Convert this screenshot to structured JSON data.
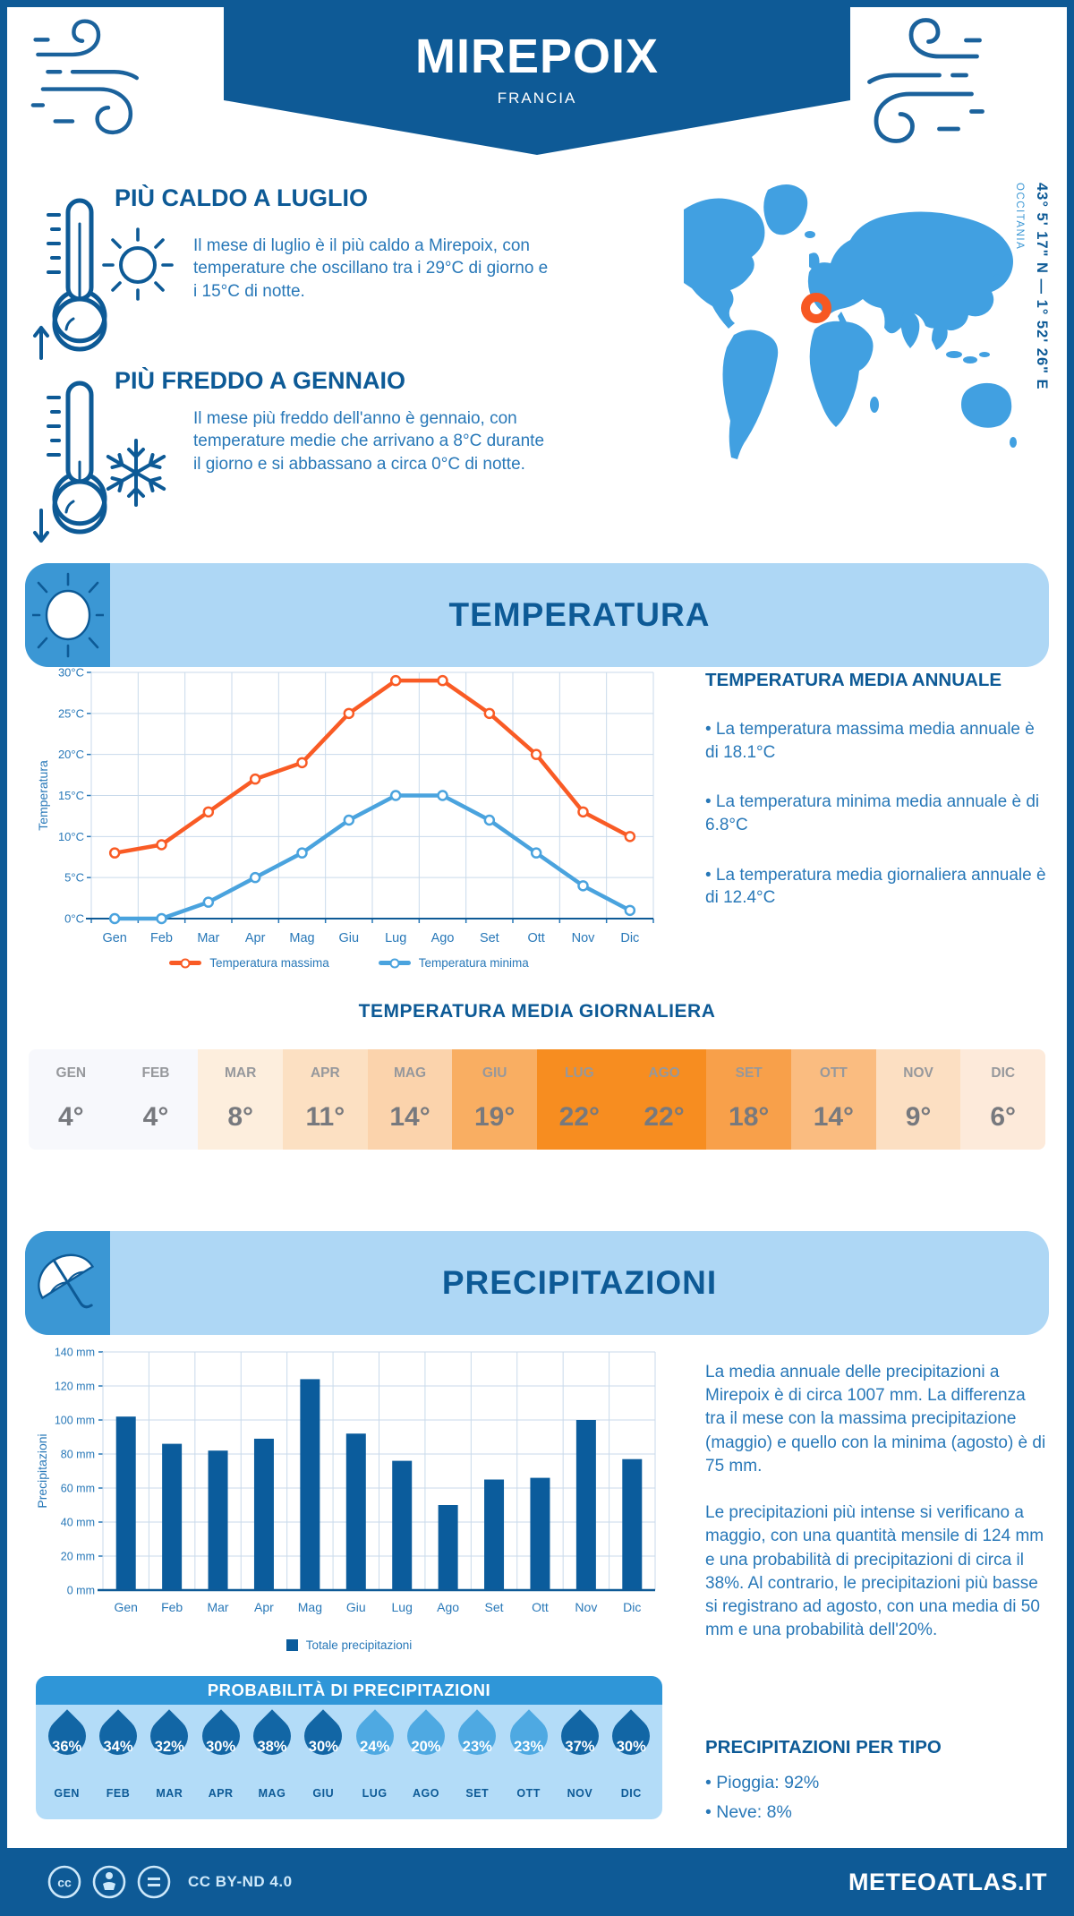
{
  "colors": {
    "dark": "#0e5a96",
    "heading": "#0d5a96",
    "text": "#2878b8",
    "band": "#aed7f5",
    "accent": "#3b97d4",
    "land": "#41a0e1",
    "marker": "#f75822",
    "grid": "#c9daeb",
    "orange": "#f95b25",
    "lineblue": "#4aa3de",
    "bar": "#0b5c9c",
    "probheader": "#2f96d8",
    "probbg": "#b3dcf8",
    "dropdark": "#1266a5",
    "droplight": "#4ea9e2",
    "tablemonth": "#96989c",
    "tablevalue": "#77797e",
    "footertext": "#cde8fa"
  },
  "header": {
    "title": "MIREPOIX",
    "subtitle": "FRANCIA"
  },
  "highlights": {
    "hot": {
      "title": "PIÙ CALDO A LUGLIO",
      "text": "Il mese di luglio è il più caldo a Mirepoix, con temperature che oscillano tra i 29°C di giorno e i 15°C di notte."
    },
    "cold": {
      "title": "PIÙ FREDDO A GENNAIO",
      "text": "Il mese più freddo dell'anno è gennaio, con temperature medie che arrivano a 8°C durante il giorno e si abbassano a circa 0°C di notte."
    }
  },
  "map": {
    "coordinates": "43° 5' 17\" N — 1° 52' 26\" E",
    "region": "OCCITANIA"
  },
  "sections": {
    "temperature": "TEMPERATURA",
    "precipitation": "PRECIPITAZIONI"
  },
  "chart_data": [
    {
      "type": "line",
      "title": "Temperatura",
      "categories": [
        "Gen",
        "Feb",
        "Mar",
        "Apr",
        "Mag",
        "Giu",
        "Lug",
        "Ago",
        "Set",
        "Ott",
        "Nov",
        "Dic"
      ],
      "series": [
        {
          "name": "Temperatura massima",
          "color": "#f95b25",
          "values": [
            8,
            9,
            13,
            17,
            19,
            25,
            29,
            29,
            25,
            20,
            13,
            10
          ]
        },
        {
          "name": "Temperatura minima",
          "color": "#4aa3de",
          "values": [
            0,
            0,
            2,
            5,
            8,
            12,
            15,
            15,
            12,
            8,
            4,
            1
          ]
        }
      ],
      "xlabel": "",
      "ylabel": "Temperatura",
      "ytick_suffix": "°C",
      "ylim": [
        0,
        30
      ],
      "ytick_step": 5,
      "grid": true,
      "legend_position": "bottom"
    },
    {
      "type": "bar",
      "title": "Precipitazioni",
      "categories": [
        "Gen",
        "Feb",
        "Mar",
        "Apr",
        "Mag",
        "Giu",
        "Lug",
        "Ago",
        "Set",
        "Ott",
        "Nov",
        "Dic"
      ],
      "series": [
        {
          "name": "Totale precipitazioni",
          "color": "#0b5c9c",
          "values": [
            102,
            86,
            82,
            89,
            124,
            92,
            76,
            50,
            65,
            66,
            100,
            77
          ]
        }
      ],
      "xlabel": "",
      "ylabel": "Precipitazioni",
      "ytick_suffix": " mm",
      "ylim": [
        0,
        140
      ],
      "ytick_step": 20,
      "grid": true,
      "legend_position": "bottom"
    }
  ],
  "annual": {
    "title": "TEMPERATURA MEDIA ANNUALE",
    "bullets": [
      "• La temperatura massima media annuale è di 18.1°C",
      "• La temperatura minima media annuale è di 6.8°C",
      "• La temperatura media giornaliera annuale è di 12.4°C"
    ]
  },
  "daily_table": {
    "title": "TEMPERATURA MEDIA GIORNALIERA",
    "months": [
      "GEN",
      "FEB",
      "MAR",
      "APR",
      "MAG",
      "GIU",
      "LUG",
      "AGO",
      "SET",
      "OTT",
      "NOV",
      "DIC"
    ],
    "values": [
      "4°",
      "4°",
      "8°",
      "11°",
      "14°",
      "19°",
      "22°",
      "22°",
      "18°",
      "14°",
      "9°",
      "6°"
    ],
    "cell_colors": [
      "#f7f8fc",
      "#f7f8fc",
      "#fdeedd",
      "#fce0c2",
      "#fbd3ac",
      "#f9ae62",
      "#f78d20",
      "#f78d20",
      "#f8a04a",
      "#fabc80",
      "#fcdfc2",
      "#fdeada"
    ]
  },
  "precip_text": {
    "p1": "La media annuale delle precipitazioni a Mirepoix è di circa 1007 mm. La differenza tra il mese con la massima precipitazione (maggio) e quello con la minima (agosto) è di 75 mm.",
    "p2": "Le precipitazioni più intense si verificano a maggio, con una quantità mensile di 124 mm e una probabilità di precipitazioni di circa il 38%. Al contrario, le precipitazioni più basse si registrano ad agosto, con una media di 50 mm e una probabilità dell'20%."
  },
  "probability": {
    "title": "PROBABILITÀ DI PRECIPITAZIONI",
    "items": [
      {
        "month": "GEN",
        "value": "36%",
        "shade": "dark"
      },
      {
        "month": "FEB",
        "value": "34%",
        "shade": "dark"
      },
      {
        "month": "MAR",
        "value": "32%",
        "shade": "dark"
      },
      {
        "month": "APR",
        "value": "30%",
        "shade": "dark"
      },
      {
        "month": "MAG",
        "value": "38%",
        "shade": "dark"
      },
      {
        "month": "GIU",
        "value": "30%",
        "shade": "dark"
      },
      {
        "month": "LUG",
        "value": "24%",
        "shade": "light"
      },
      {
        "month": "AGO",
        "value": "20%",
        "shade": "light"
      },
      {
        "month": "SET",
        "value": "23%",
        "shade": "light"
      },
      {
        "month": "OTT",
        "value": "23%",
        "shade": "light"
      },
      {
        "month": "NOV",
        "value": "37%",
        "shade": "dark"
      },
      {
        "month": "DIC",
        "value": "30%",
        "shade": "dark"
      }
    ]
  },
  "precip_type": {
    "title": "PRECIPITAZIONI PER TIPO",
    "items": [
      "• Pioggia: 92%",
      "• Neve: 8%"
    ]
  },
  "footer": {
    "license": "CC BY-ND 4.0",
    "site": "METEOATLAS.IT"
  }
}
